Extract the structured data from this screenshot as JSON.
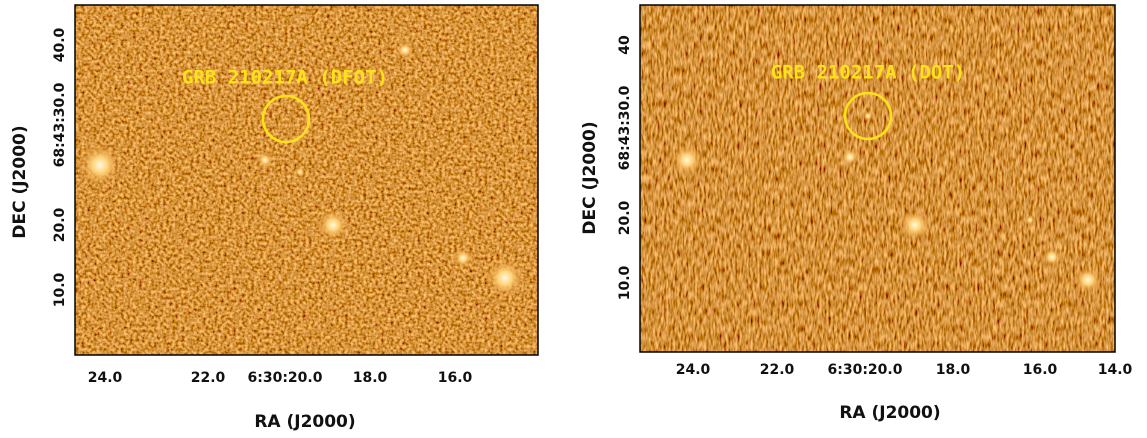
{
  "panels": [
    {
      "annotation": "GRB 210217A (DFOT)",
      "xticks": [
        "24.0",
        "22.0",
        "6:30:20.0",
        "18.0",
        "16.0"
      ],
      "yticks": [
        "40.0",
        "68:43:30.0",
        "20.0",
        "10.0"
      ],
      "xlabel": "RA (J2000)",
      "ylabel": "DEC (J2000)"
    },
    {
      "annotation": "GRB 210217A (DOT)",
      "xticks": [
        "24.0",
        "22.0",
        "6:30:20.0",
        "18.0",
        "16.0",
        "14.0"
      ],
      "yticks": [
        "40",
        "68:43:30.0",
        "20.0",
        "10.0"
      ],
      "xlabel": "RA (J2000)",
      "ylabel": "DEC (J2000)"
    }
  ]
}
